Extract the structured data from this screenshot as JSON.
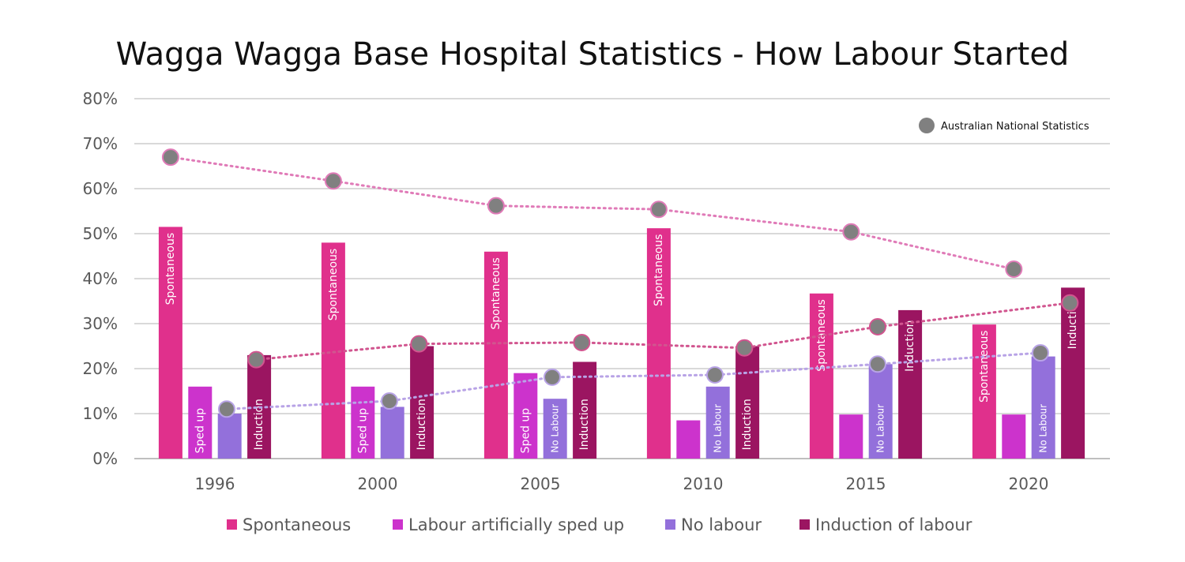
{
  "chart_data": {
    "type": "bar",
    "title": "Wagga Wagga Base Hospital Statistics   - How Labour Started",
    "xlabel": "",
    "ylabel": "",
    "ylim": [
      0,
      80
    ],
    "y_ticks": [
      "0%",
      "10%",
      "20%",
      "30%",
      "40%",
      "50%",
      "60%",
      "70%",
      "80%"
    ],
    "grid": true,
    "legend_position": "bottom",
    "categories": [
      "1996",
      "2000",
      "2005",
      "2010",
      "2015",
      "2020"
    ],
    "series": [
      {
        "name": "Spontaneous",
        "color": "#e0308c",
        "values": [
          51.5,
          48,
          46,
          51.2,
          36.7,
          29.8
        ],
        "bar_labels": [
          "Spontaneous",
          "Spontaneous",
          "Spontaneous",
          "Spontaneous",
          "Spontaneous",
          "Spontaneous"
        ]
      },
      {
        "name": "Labour artificially sped up",
        "color": "#cc33cc",
        "values": [
          16,
          16,
          19,
          8.5,
          9.8,
          9.8
        ],
        "bar_labels": [
          "Sped up",
          "Sped up",
          "Sped up",
          "",
          "",
          ""
        ]
      },
      {
        "name": "No labour",
        "color": "#9370db",
        "values": [
          10,
          11.5,
          13.3,
          16,
          21,
          22.7
        ],
        "bar_labels": [
          "",
          "",
          "No Labour",
          "No Labour",
          "No Labour",
          "No Labour"
        ]
      },
      {
        "name": "Induction of labour",
        "color": "#9b1561",
        "values": [
          23,
          25,
          21.5,
          25,
          33,
          38
        ],
        "bar_labels": [
          "Induction",
          "Induction",
          "Induction",
          "Induction",
          "Induction",
          "Induction"
        ]
      }
    ],
    "national_statistics": {
      "legend_label": "Australian National Statistics",
      "marker_color": "#808080",
      "series": [
        {
          "name": "Spontaneous",
          "line_color": "#e07bb8",
          "values": [
            67,
            61.7,
            56.2,
            55.4,
            50.4,
            42.1
          ],
          "x_offsets": [
            -1.5,
            -1.5,
            -1.5,
            -1.5,
            -0.5,
            -0.5
          ]
        },
        {
          "name": "No labour",
          "line_color": "#b8a3e6",
          "values": [
            11,
            12.8,
            18.1,
            18.6,
            21,
            23.5
          ],
          "x_offsets": [
            0.4,
            0.4,
            0.4,
            0.4,
            0.4,
            0.4
          ]
        },
        {
          "name": "Induction of labour",
          "line_color": "#d1558f",
          "values": [
            22,
            25.5,
            25.8,
            24.6,
            29.3,
            34.6
          ],
          "x_offsets": [
            1.4,
            1.4,
            1.4,
            1.4,
            0.4,
            1.4
          ]
        }
      ]
    }
  }
}
